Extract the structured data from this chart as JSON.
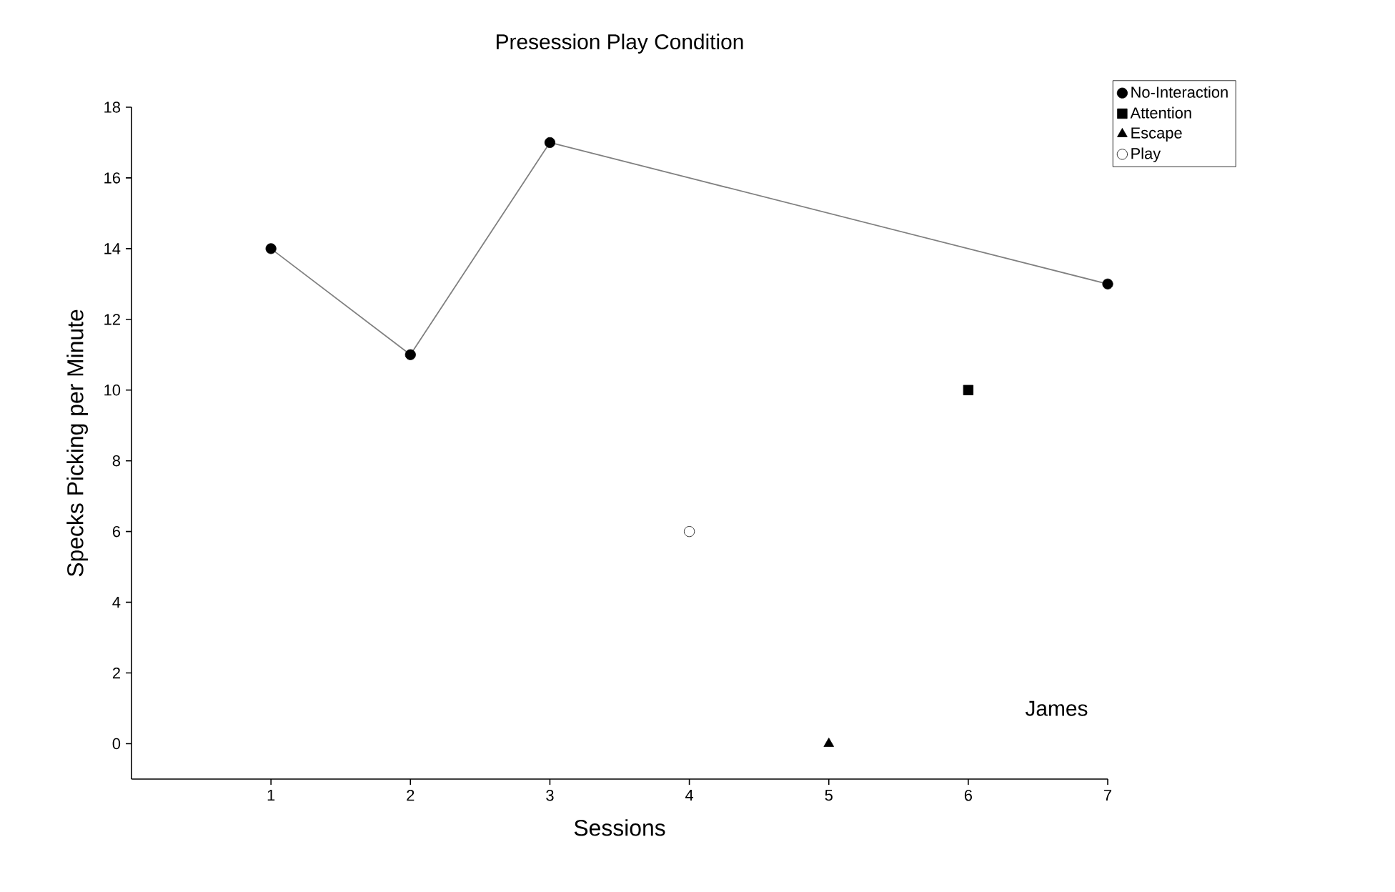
{
  "chart_data": {
    "type": "scatter",
    "title": "Presession Play Condition",
    "xlabel": "Sessions",
    "ylabel": "Specks Picking per Minute",
    "xlim": [
      0,
      7
    ],
    "ylim": [
      -1,
      18
    ],
    "xticks": [
      1,
      2,
      3,
      4,
      5,
      6,
      7
    ],
    "yticks": [
      0,
      2,
      4,
      6,
      8,
      10,
      12,
      14,
      16,
      18
    ],
    "grid": false,
    "legend": "top right",
    "series": [
      {
        "name": "No-Interaction",
        "type": "line",
        "marker": "circle",
        "color": "#000000",
        "x": [
          1,
          2,
          3,
          7
        ],
        "values": [
          14,
          11,
          17,
          13
        ]
      },
      {
        "name": "Attention",
        "marker": "square",
        "color": "#000000",
        "x": [
          6
        ],
        "values": [
          10
        ]
      },
      {
        "name": "Escape",
        "marker": "triangle",
        "color": "#000000",
        "x": [
          5
        ],
        "values": [
          0
        ]
      },
      {
        "name": "Play",
        "marker": "circle",
        "color": "#ffffff",
        "x": [
          4
        ],
        "values": [
          6
        ]
      }
    ],
    "annotations": [
      "James"
    ]
  }
}
